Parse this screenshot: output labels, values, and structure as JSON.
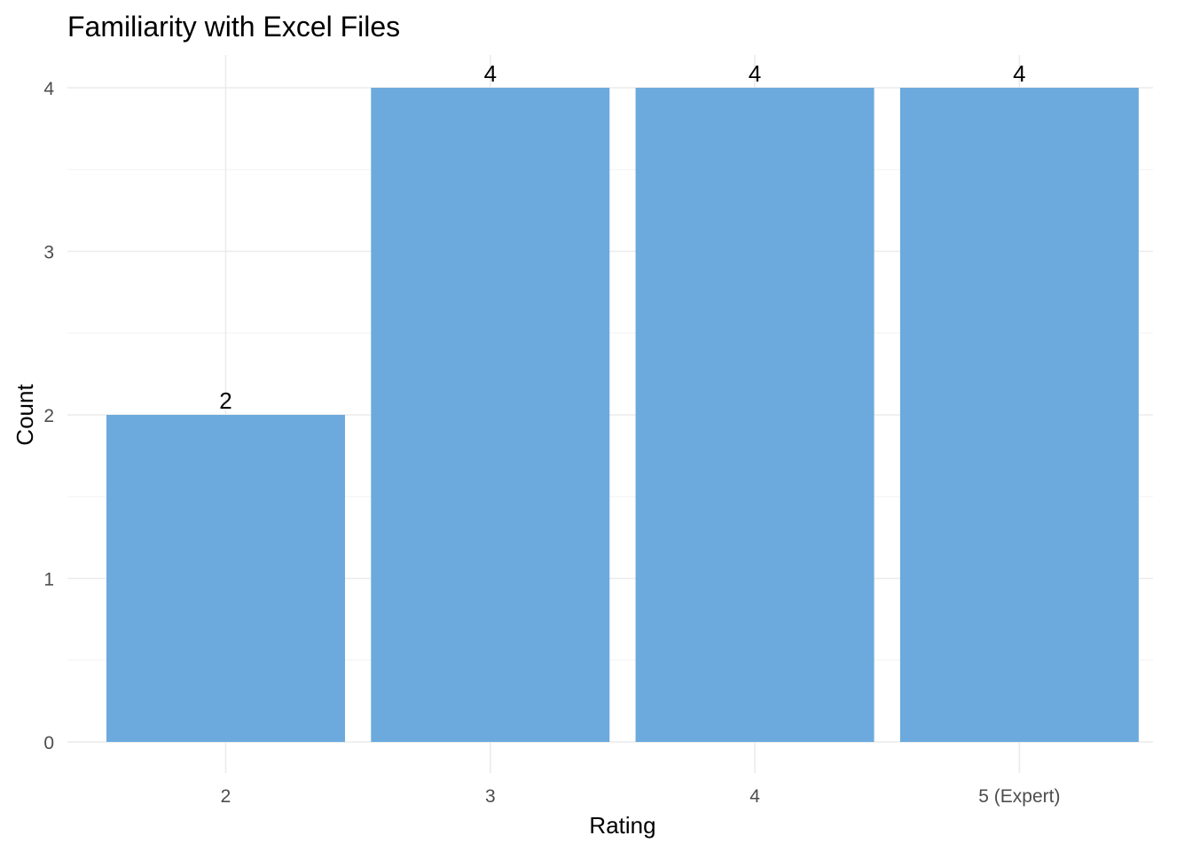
{
  "chart_data": {
    "type": "bar",
    "title": "Familiarity with Excel Files",
    "xlabel": "Rating",
    "ylabel": "Count",
    "categories": [
      "2",
      "3",
      "4",
      "5 (Expert)"
    ],
    "values": [
      2,
      4,
      4,
      4
    ],
    "data_labels": [
      "2",
      "4",
      "4",
      "4"
    ],
    "ylim": [
      0,
      4
    ],
    "y_ticks": [
      "0",
      "1",
      "2",
      "3",
      "4"
    ],
    "grid": true,
    "bar_color": "#6CAADD",
    "theme": "minimal"
  }
}
